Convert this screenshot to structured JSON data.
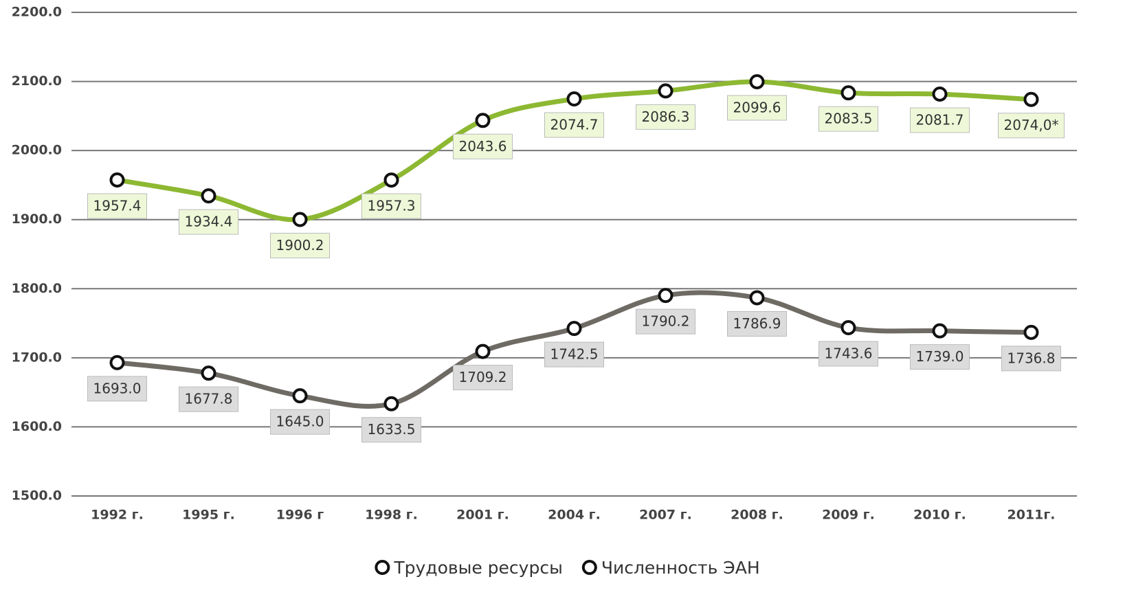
{
  "chart_data": {
    "type": "line",
    "categories": [
      "1992 г.",
      "1995 г.",
      "1996 г",
      "1998 г.",
      "2001 г.",
      "2004 г.",
      "2007 г.",
      "2008 г.",
      "2009 г.",
      "2010 г.",
      "2011г."
    ],
    "series": [
      {
        "name": "Трудовые ресурсы",
        "color": "#8db832",
        "label_fill": "#eef8d8",
        "values": [
          1957.4,
          1934.4,
          1900.2,
          1957.3,
          2043.6,
          2074.7,
          2086.3,
          2099.6,
          2083.5,
          2081.7,
          2074.0
        ],
        "value_labels": [
          "1957.4",
          "1934.4",
          "1900.2",
          "1957.3",
          "2043.6",
          "2074.7",
          "2086.3",
          "2099.6",
          "2083.5",
          "2081.7",
          "2074,0*"
        ]
      },
      {
        "name": "Численность ЭАН",
        "color": "#6e6a64",
        "label_fill": "#dcdcdc",
        "values": [
          1693.0,
          1677.8,
          1645.0,
          1633.5,
          1709.2,
          1742.5,
          1790.2,
          1786.9,
          1743.6,
          1739.0,
          1736.8
        ],
        "value_labels": [
          "1693.0",
          "1677.8",
          "1645.0",
          "1633.5",
          "1709.2",
          "1742.5",
          "1790.2",
          "1786.9",
          "1743.6",
          "1739.0",
          "1736.8"
        ]
      }
    ],
    "ylim": [
      1500,
      2200
    ],
    "yticks": [
      {
        "value": 1500,
        "label": "1500.0"
      },
      {
        "value": 1600,
        "label": "1600.0"
      },
      {
        "value": 1700,
        "label": "1700.0"
      },
      {
        "value": 1800,
        "label": "1800.0"
      },
      {
        "value": 1900,
        "label": "1900.0"
      },
      {
        "value": 2000,
        "label": "2000.0"
      },
      {
        "value": 2100,
        "label": "2100.0"
      },
      {
        "value": 2200,
        "label": "2200.0"
      }
    ],
    "grid": true,
    "legend": "bottom"
  }
}
